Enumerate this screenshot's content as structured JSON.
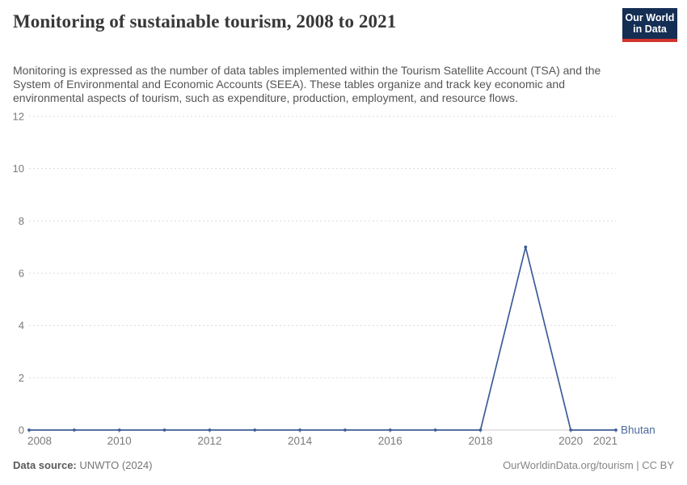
{
  "header": {
    "title": "Monitoring of sustainable tourism, 2008 to 2021",
    "subtitle": "Monitoring is expressed as the number of data tables implemented within the Tourism Satellite Account (TSA) and the System of Environmental and Economic Accounts (SEEA). These tables organize and track key economic and environmental aspects of tourism, such as expenditure, production, employment, and resource flows.",
    "logo": {
      "line1": "Our World",
      "line2": "in Data",
      "bg_color": "#142e54",
      "stripe_color": "#d0342c"
    }
  },
  "chart_data": {
    "type": "line",
    "title": "Monitoring of sustainable tourism, 2008 to 2021",
    "xlabel": "",
    "ylabel": "",
    "x": [
      2008,
      2009,
      2010,
      2011,
      2012,
      2013,
      2014,
      2015,
      2016,
      2017,
      2018,
      2019,
      2020,
      2021
    ],
    "series": [
      {
        "name": "Bhutan",
        "color": "#3d5c96",
        "label_color": "#4c6a9c",
        "values": [
          0,
          0,
          0,
          0,
          0,
          0,
          0,
          0,
          0,
          0,
          0,
          7,
          0,
          0
        ]
      }
    ],
    "x_ticks": [
      2008,
      2010,
      2012,
      2014,
      2016,
      2018,
      2020,
      2021
    ],
    "y_ticks": [
      0,
      2,
      4,
      6,
      8,
      10,
      12
    ],
    "ylim": [
      0,
      12
    ],
    "xlim": [
      2008,
      2021
    ],
    "grid": "horizontal-dashed",
    "legend_position": "end-of-line",
    "tick_color": "#7a7a7a",
    "gridline_color": "#dcdcdc",
    "axis_color": "#c8c8c8"
  },
  "footer": {
    "source_label": "Data source:",
    "source_value": "UNWTO (2024)",
    "credit": "OurWorldinData.org/tourism | CC BY"
  }
}
